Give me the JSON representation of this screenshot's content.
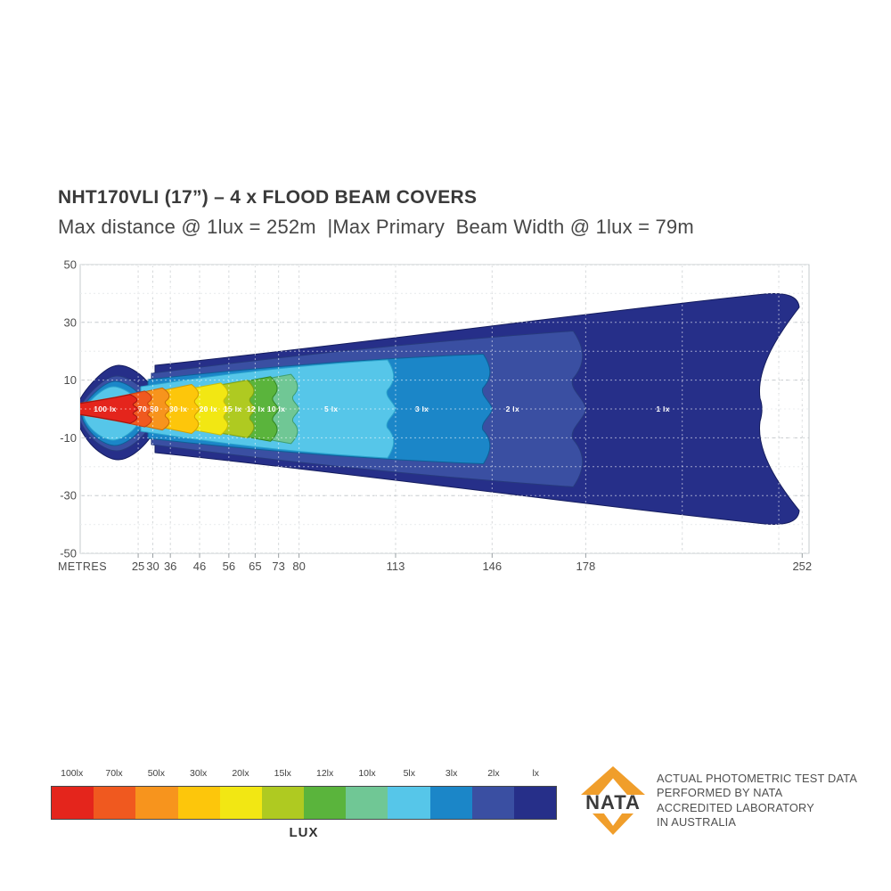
{
  "title": "NHT170VLI (17”) – 4 x FLOOD BEAM COVERS",
  "subtitle": "Max distance @ 1lux = 252m  |Max Primary  Beam Width @ 1lux = 79m",
  "chart_data": {
    "type": "contour",
    "description": "Isolux beam pattern plot (illuminance contours vs distance)",
    "x_axis": {
      "label": "METRES",
      "ticks": [
        25,
        30,
        36,
        46,
        56,
        65,
        73,
        80,
        113,
        146,
        178,
        252
      ],
      "grid_extra": [
        211,
        244
      ],
      "range": [
        5,
        254
      ]
    },
    "y_axis": {
      "ticks": [
        50,
        30,
        10,
        -10,
        -30,
        -50
      ],
      "grid_step": 10,
      "range": [
        -50,
        50
      ],
      "unit": "metres"
    },
    "max_distance_at_1lux_m": 252,
    "max_beam_width_at_1lux_m": 79,
    "contours": [
      {
        "lux": 1,
        "label": "1 lx",
        "color": "#262f89",
        "stroke": "#151d5e",
        "reach_m": 252,
        "halfwidth_m": 39.5,
        "label_m": 204.4
      },
      {
        "lux": 2,
        "label": "2 lx",
        "color": "#3a4fa2",
        "stroke": "#273a7e",
        "reach_m": 178,
        "halfwidth_m": 27.0,
        "label_m": 153.0
      },
      {
        "lux": 3,
        "label": "3 lx",
        "color": "#1b86c8",
        "stroke": "#0f5f96",
        "reach_m": 146,
        "halfwidth_m": 19.0,
        "label_m": 122.0
      },
      {
        "lux": 5,
        "label": "5 lx",
        "color": "#56c6e9",
        "stroke": "#2aa3cc",
        "reach_m": 113,
        "halfwidth_m": 17.0,
        "label_m": 91.0
      },
      {
        "lux": 10,
        "label": "10 lx",
        "color": "#70c795",
        "stroke": "#3f9e6e",
        "reach_m": 80,
        "halfwidth_m": 12.0,
        "label_m": 72.2
      },
      {
        "lux": 12,
        "label": "12 lx",
        "color": "#5ab43c",
        "stroke": "#31851f",
        "reach_m": 73,
        "halfwidth_m": 11.2,
        "label_m": 65.2
      },
      {
        "lux": 15,
        "label": "15 lx",
        "color": "#afca21",
        "stroke": "#7fa012",
        "reach_m": 65,
        "halfwidth_m": 10.0,
        "label_m": 57.3
      },
      {
        "lux": 20,
        "label": "20 lx",
        "color": "#f2e713",
        "stroke": "#c9bd0a",
        "reach_m": 56,
        "halfwidth_m": 9.0,
        "label_m": 49.0
      },
      {
        "lux": 30,
        "label": "30 lx",
        "color": "#fdc60b",
        "stroke": "#d19e04",
        "reach_m": 46,
        "halfwidth_m": 8.5,
        "label_m": 38.7
      },
      {
        "lux": 50,
        "label": "50",
        "color": "#f7941d",
        "stroke": "#c96e07",
        "reach_m": 36,
        "halfwidth_m": 7.3,
        "label_m": 30.5
      },
      {
        "lux": 70,
        "label": "70",
        "color": "#f0591f",
        "stroke": "#c43d10",
        "reach_m": 30,
        "halfwidth_m": 6.2,
        "label_m": 26.5
      },
      {
        "lux": 100,
        "label": "100 lx",
        "color": "#e4251c",
        "stroke": "#a01212",
        "reach_m": 25,
        "halfwidth_m": 5.0,
        "label_m": 13.7
      }
    ]
  },
  "legend": {
    "caption": "LUX",
    "items": [
      {
        "label": "100lx",
        "color": "#e4251c"
      },
      {
        "label": "70lx",
        "color": "#f0591f"
      },
      {
        "label": "50lx",
        "color": "#f7941d"
      },
      {
        "label": "30lx",
        "color": "#fdc60b"
      },
      {
        "label": "20lx",
        "color": "#f2e713"
      },
      {
        "label": "15lx",
        "color": "#afca21"
      },
      {
        "label": "12lx",
        "color": "#5ab43c"
      },
      {
        "label": "10lx",
        "color": "#70c795"
      },
      {
        "label": "5lx",
        "color": "#56c6e9"
      },
      {
        "label": "3lx",
        "color": "#1b86c8"
      },
      {
        "label": "2lx",
        "color": "#3a4fa2"
      },
      {
        "label": "lx",
        "color": "#262f89"
      }
    ]
  },
  "nata": {
    "logo_text": "NATA",
    "orange": "#F09E2B",
    "lines": [
      "ACTUAL PHOTOMETRIC TEST DATA",
      "PERFORMED BY NATA",
      "ACCREDITED LABORATORY",
      "IN AUSTRALIA"
    ]
  }
}
